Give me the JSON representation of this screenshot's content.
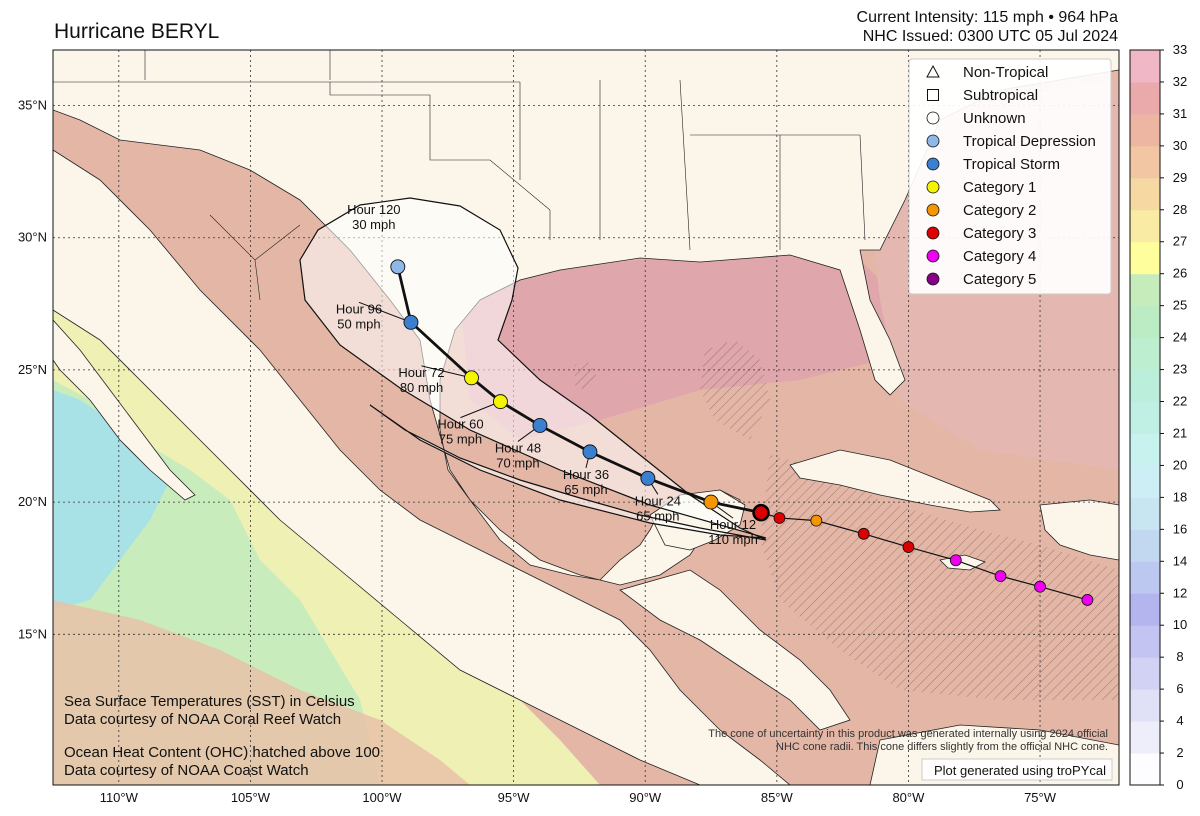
{
  "header": {
    "title": "Hurricane BERYL",
    "intensity_line": "Current Intensity: 115 mph • 964 hPa",
    "issued_line": "NHC Issued: 0300 UTC 05 Jul 2024"
  },
  "axes": {
    "lon_labels": [
      "110°W",
      "105°W",
      "100°W",
      "95°W",
      "90°W",
      "85°W",
      "80°W",
      "75°W"
    ],
    "lat_labels": [
      "35°N",
      "30°N",
      "25°N",
      "20°N",
      "15°N"
    ]
  },
  "legend": [
    {
      "label": "Non-Tropical",
      "marker": "triangle",
      "color": "#ffffff"
    },
    {
      "label": "Subtropical",
      "marker": "square",
      "color": "#ffffff"
    },
    {
      "label": "Unknown",
      "marker": "circle",
      "color": "#ffffff"
    },
    {
      "label": "Tropical Depression",
      "marker": "circle",
      "color": "#8fb8e8"
    },
    {
      "label": "Tropical Storm",
      "marker": "circle",
      "color": "#3a7fd0"
    },
    {
      "label": "Category 1",
      "marker": "circle",
      "color": "#f5f500"
    },
    {
      "label": "Category 2",
      "marker": "circle",
      "color": "#f59500"
    },
    {
      "label": "Category 3",
      "marker": "circle",
      "color": "#dd0000"
    },
    {
      "label": "Category 4",
      "marker": "circle",
      "color": "#f000f0"
    },
    {
      "label": "Category 5",
      "marker": "circle",
      "color": "#880088"
    }
  ],
  "colorbar": {
    "labels": [
      "0",
      "2",
      "4",
      "6",
      "8",
      "10",
      "12",
      "14",
      "16",
      "18",
      "20",
      "21",
      "22",
      "23",
      "24",
      "25",
      "26",
      "27",
      "28",
      "29",
      "30",
      "31",
      "32",
      "33"
    ],
    "colors": [
      "#fdfdff",
      "#eeeefa",
      "#e0e0f6",
      "#d2d2f4",
      "#c4c4f2",
      "#b4b4ee",
      "#bcc8f0",
      "#c2d8f0",
      "#c8e6f2",
      "#cceef4",
      "#c8f2ee",
      "#c0f0e4",
      "#bceedc",
      "#bdeecf",
      "#bcecc4",
      "#c6ecbc",
      "#fffe9c",
      "#f9eaa4",
      "#f6d8a2",
      "#f2c6a2",
      "#ecb6a2",
      "#eaaaac",
      "#f0b8c6",
      "#f8d8ec"
    ]
  },
  "past_track": [
    {
      "lon": -73.2,
      "lat": 16.3,
      "category": "Category 4"
    },
    {
      "lon": -75.0,
      "lat": 16.8,
      "category": "Category 4"
    },
    {
      "lon": -76.5,
      "lat": 17.2,
      "category": "Category 4"
    },
    {
      "lon": -78.2,
      "lat": 17.8,
      "category": "Category 4"
    },
    {
      "lon": -80.0,
      "lat": 18.3,
      "category": "Category 3"
    },
    {
      "lon": -81.7,
      "lat": 18.8,
      "category": "Category 3"
    },
    {
      "lon": -83.5,
      "lat": 19.3,
      "category": "Category 2"
    },
    {
      "lon": -84.9,
      "lat": 19.4,
      "category": "Category 3"
    }
  ],
  "current_position": {
    "lon": -85.6,
    "lat": 19.6,
    "category": "Category 3"
  },
  "forecast_points": [
    {
      "hour": 12,
      "lon": -87.5,
      "lat": 20.0,
      "category": "Category 2",
      "label": "Hour 12",
      "wind": "110 mph"
    },
    {
      "hour": 24,
      "lon": -89.9,
      "lat": 20.9,
      "category": "Tropical Storm",
      "label": "Hour 24",
      "wind": "65 mph"
    },
    {
      "hour": 36,
      "lon": -92.1,
      "lat": 21.9,
      "category": "Tropical Storm",
      "label": "Hour 36",
      "wind": "65 mph"
    },
    {
      "hour": 48,
      "lon": -94.0,
      "lat": 22.9,
      "category": "Tropical Storm",
      "label": "Hour 48",
      "wind": "70 mph"
    },
    {
      "hour": 60,
      "lon": -95.5,
      "lat": 23.8,
      "category": "Category 1",
      "label": "Hour 60",
      "wind": "75 mph"
    },
    {
      "hour": 72,
      "lon": -96.6,
      "lat": 24.7,
      "category": "Category 1",
      "label": "Hour 72",
      "wind": "80 mph"
    },
    {
      "hour": 96,
      "lon": -98.9,
      "lat": 26.8,
      "category": "Tropical Storm",
      "label": "Hour 96",
      "wind": "50 mph"
    },
    {
      "hour": 120,
      "lon": -99.4,
      "lat": 28.9,
      "category": "Tropical Depression",
      "label": "Hour 120",
      "wind": "30 mph"
    }
  ],
  "notes": {
    "sst_line1": "Sea Surface Temperatures (SST) in Celsius",
    "sst_line2": "Data courtesy of NOAA Coral Reef Watch",
    "ohc_line1": "Ocean Heat Content (OHC) hatched above 100",
    "ohc_line2": "Data courtesy of NOAA Coast Watch",
    "cone_line1": "The cone of uncertainty in this product was generated internally using 2024 official",
    "cone_line2": "NHC cone radii. This cone differs slightly from the official NHC cone.",
    "credit": "Plot generated using troPYcal"
  }
}
